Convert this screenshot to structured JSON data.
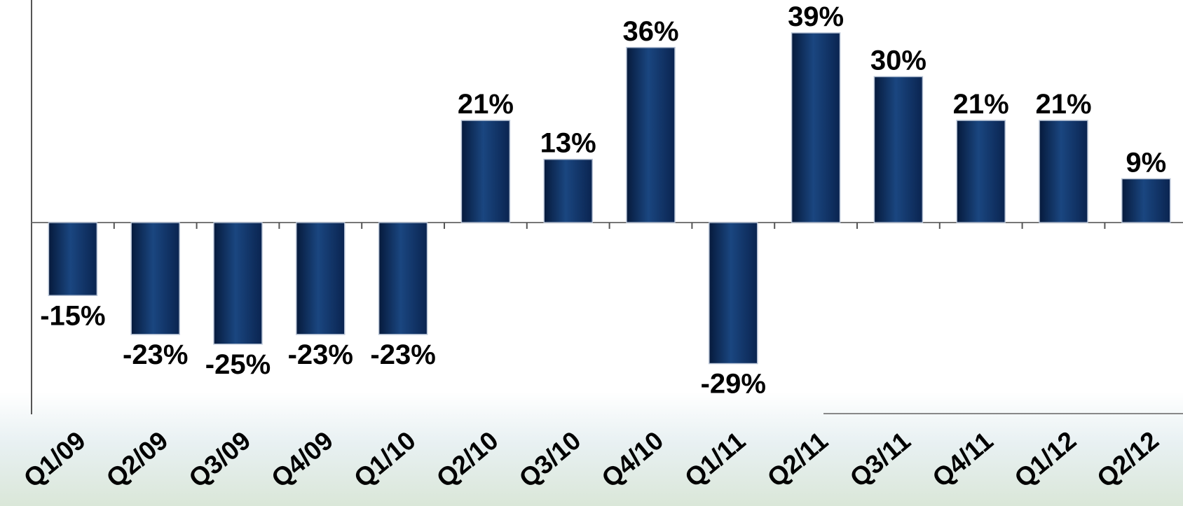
{
  "chart_data": {
    "type": "bar",
    "title": "",
    "xlabel": "",
    "ylabel": "",
    "categories": [
      "Q1/09",
      "Q2/09",
      "Q3/09",
      "Q4/09",
      "Q1/10",
      "Q2/10",
      "Q3/10",
      "Q4/10",
      "Q1/11",
      "Q2/11",
      "Q3/11",
      "Q4/11",
      "Q1/12",
      "Q2/12"
    ],
    "values": [
      -15,
      -23,
      -25,
      -23,
      -23,
      21,
      13,
      36,
      -29,
      39,
      30,
      21,
      21,
      9
    ],
    "value_labels": [
      "-15%",
      "-23%",
      "-25%",
      "-23%",
      "-23%",
      "21%",
      "13%",
      "36%",
      "-29%",
      "39%",
      "30%",
      "21%",
      "21%",
      "9%"
    ],
    "unit": "%",
    "ylim": [
      -40,
      46
    ],
    "grid": false,
    "legend": "none",
    "colors": {
      "bar_dark": "#061a3c",
      "bar_mid": "#1a4680",
      "axis": "#555555",
      "text": "#000000"
    }
  }
}
